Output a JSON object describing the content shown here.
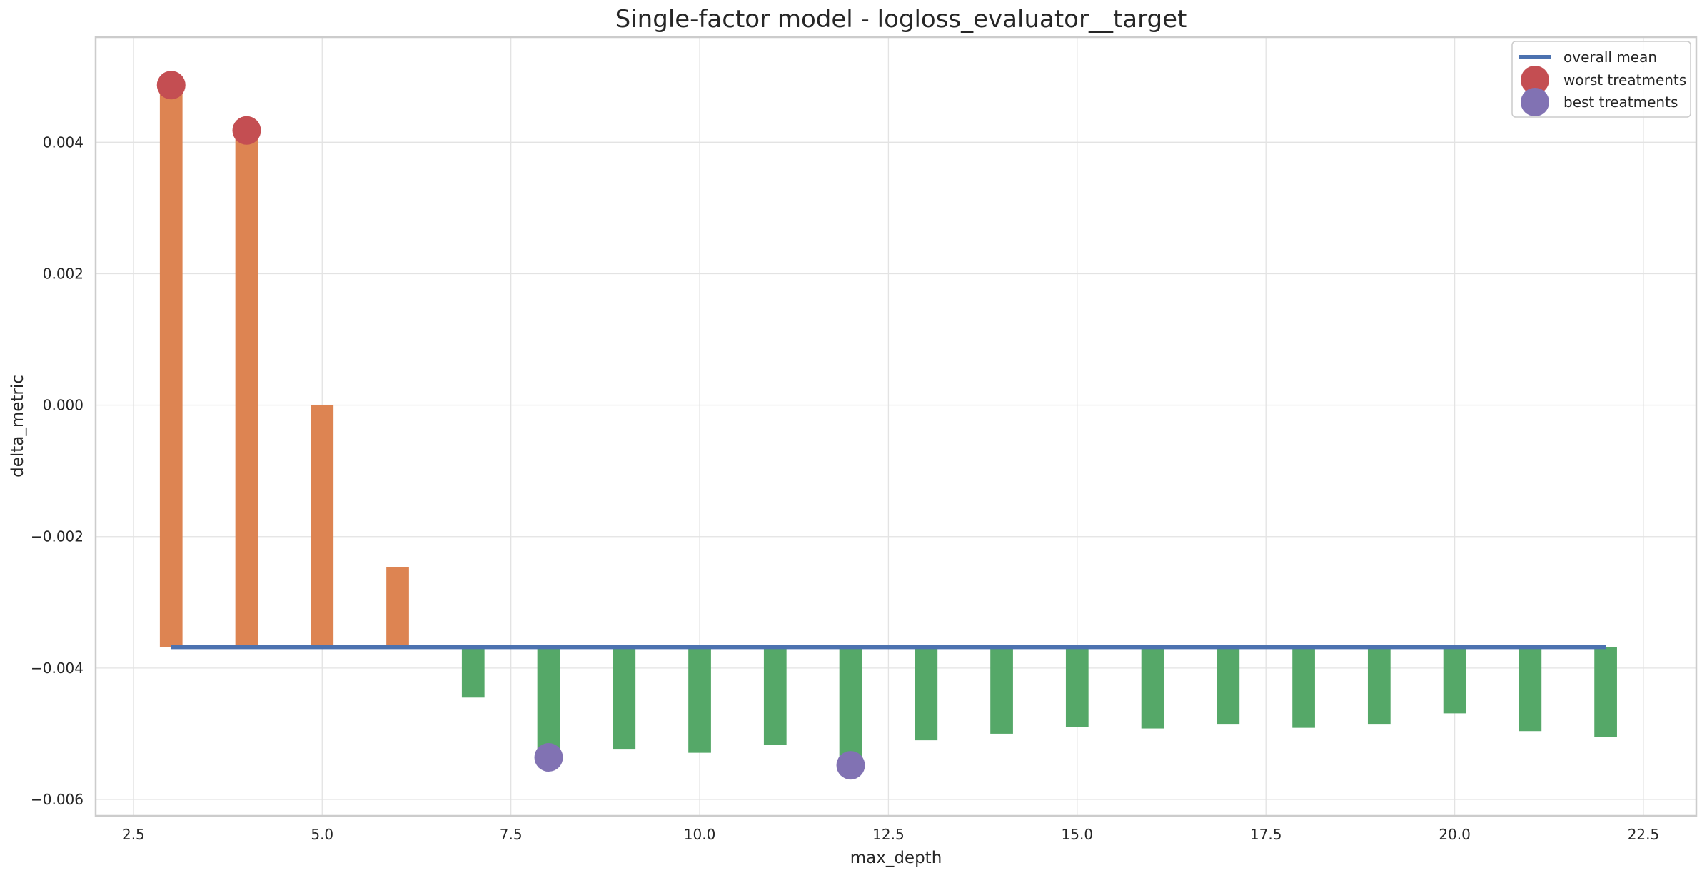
{
  "chart_data": {
    "type": "bar",
    "title": "Single-factor model - logloss_evaluator__target",
    "xlabel": "max_depth",
    "ylabel": "delta_metric",
    "xlim": [
      2.0,
      23.2
    ],
    "ylim": [
      -0.00625,
      0.0056
    ],
    "xticks": [
      2.5,
      5.0,
      7.5,
      10.0,
      12.5,
      15.0,
      17.5,
      20.0,
      22.5
    ],
    "xtick_labels": [
      "2.5",
      "5.0",
      "7.5",
      "10.0",
      "12.5",
      "15.0",
      "17.5",
      "20.0",
      "22.5"
    ],
    "yticks": [
      -0.006,
      -0.004,
      -0.002,
      0.0,
      0.002,
      0.004
    ],
    "ytick_labels": [
      "−0.006",
      "−0.004",
      "−0.002",
      "0.000",
      "0.002",
      "0.004"
    ],
    "grid": true,
    "legend_position": "top-right",
    "baseline": -0.00368,
    "bar_width": 0.3,
    "x": [
      3,
      4,
      5,
      6,
      7,
      8,
      9,
      10,
      11,
      12,
      13,
      14,
      15,
      16,
      17,
      18,
      19,
      20,
      21,
      22
    ],
    "values": [
      0.00487,
      0.00418,
      0.0,
      -0.00247,
      -0.00445,
      -0.00536,
      -0.00523,
      -0.00529,
      -0.00517,
      -0.00548,
      -0.0051,
      -0.005,
      -0.0049,
      -0.00492,
      -0.00485,
      -0.00491,
      -0.00485,
      -0.00469,
      -0.00496,
      -0.00505
    ],
    "above_color": "#dd8452",
    "below_color": "#55a868",
    "overall_mean": {
      "name": "overall mean",
      "value": -0.00368,
      "x_range": [
        3,
        22
      ],
      "color": "#4c72b0"
    },
    "worst_treatments": {
      "name": "worst treatments",
      "x": [
        3,
        4
      ],
      "y": [
        0.00487,
        0.00418
      ],
      "color": "#c44e52"
    },
    "best_treatments": {
      "name": "best treatments",
      "x": [
        8,
        12
      ],
      "y": [
        -0.00536,
        -0.00548
      ],
      "color": "#8172b3"
    }
  }
}
